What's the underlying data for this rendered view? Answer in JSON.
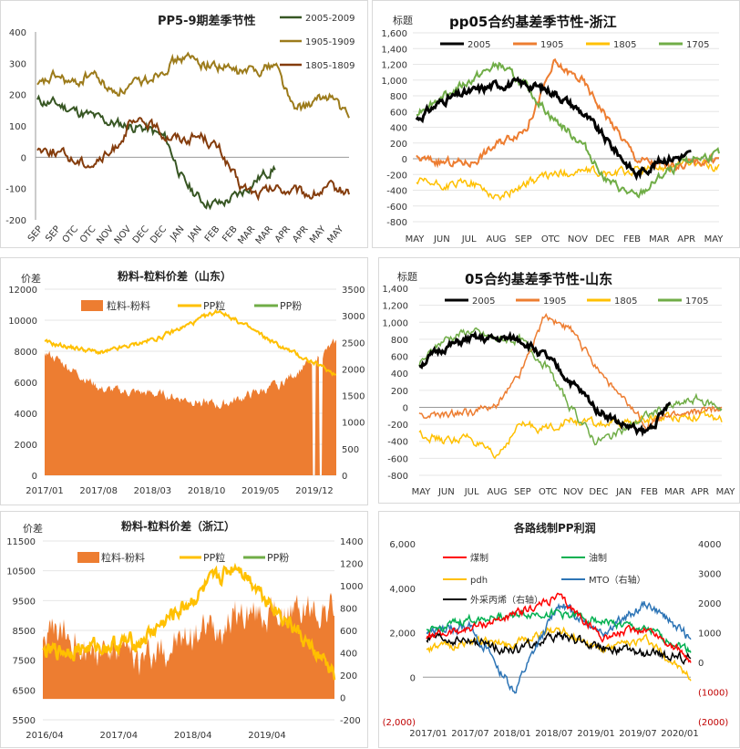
{
  "panels": [
    {
      "id": "p1",
      "title": "PP5-9期差季节性",
      "ytitle": "",
      "yticks": [
        "400",
        "300",
        "200",
        "100",
        "0",
        "-100",
        "-200"
      ],
      "xlabels": [
        "SEP",
        "SEP",
        "OTC",
        "OTC",
        "NOV",
        "NOV",
        "DEC",
        "DEC",
        "JAN",
        "JAN",
        "FEB",
        "FEB",
        "MAR",
        "MAR",
        "APR",
        "APR",
        "MAY",
        "MAY"
      ],
      "legend": [
        {
          "name": "2005-2009",
          "color": "#375623"
        },
        {
          "name": "1905-1909",
          "color": "#9c7b1b"
        },
        {
          "name": "1805-1809",
          "color": "#843c0c"
        }
      ]
    },
    {
      "id": "p2",
      "title": "pp05合约基差季节性-浙江",
      "ytitle": "标题",
      "yticks": [
        "1,600",
        "1,400",
        "1,200",
        "1,000",
        "800",
        "600",
        "400",
        "200",
        "0",
        "-200",
        "-400",
        "-600",
        "-800"
      ],
      "xlabels": [
        "MAY",
        "JUN",
        "JUL",
        "AUG",
        "SEP",
        "OTC",
        "NOV",
        "DEC",
        "FEB",
        "MAR",
        "APR",
        "MAY"
      ],
      "legend": [
        {
          "name": "2005",
          "color": "#000000"
        },
        {
          "name": "1905",
          "color": "#ed7d31"
        },
        {
          "name": "1805",
          "color": "#ffc000"
        },
        {
          "name": "1705",
          "color": "#70ad47"
        }
      ]
    },
    {
      "id": "p3",
      "title": "粉料-粒料价差（山东）",
      "ytitle": "价差",
      "yticks": [
        "12000",
        "10000",
        "8000",
        "6000",
        "4000",
        "2000",
        "0"
      ],
      "y2ticks": [
        "3500",
        "3000",
        "2500",
        "2000",
        "1500",
        "1000",
        "500",
        "0"
      ],
      "xlabels": [
        "2017/01",
        "2017/08",
        "2018/03",
        "2018/10",
        "2019/05",
        "2019/12"
      ],
      "legend": [
        {
          "name": "粒料-粉料",
          "color": "#ed7d31"
        },
        {
          "name": "PP粒",
          "color": "#ffc000"
        },
        {
          "name": "PP粉",
          "color": "#70ad47"
        }
      ]
    },
    {
      "id": "p4",
      "title": "05合约基差季节性-山东",
      "ytitle": "标题",
      "yticks": [
        "1,400",
        "1,200",
        "1,000",
        "800",
        "600",
        "400",
        "200",
        "0",
        "-200",
        "-400",
        "-600",
        "-800"
      ],
      "xlabels": [
        "MAY",
        "JUN",
        "JUL",
        "AUG",
        "SEP",
        "OTC",
        "NOV",
        "DEC",
        "JAN",
        "FEB",
        "MAR",
        "APR",
        "MAY"
      ],
      "legend": [
        {
          "name": "2005",
          "color": "#000000"
        },
        {
          "name": "1905",
          "color": "#ed7d31"
        },
        {
          "name": "1805",
          "color": "#ffc000"
        },
        {
          "name": "1705",
          "color": "#70ad47"
        }
      ]
    },
    {
      "id": "p5",
      "title": "粉料-粒料价差（浙江）",
      "ytitle": "价差",
      "yticks": [
        "11500",
        "10500",
        "9500",
        "8500",
        "7500",
        "6500",
        "5500"
      ],
      "y2ticks": [
        "1400",
        "1200",
        "1000",
        "800",
        "600",
        "400",
        "200",
        "0",
        "-200"
      ],
      "xlabels": [
        "2016/04",
        "2017/04",
        "2018/04",
        "2019/04"
      ],
      "legend": [
        {
          "name": "粒料-粉料",
          "color": "#ed7d31"
        },
        {
          "name": "PP粒",
          "color": "#ffc000"
        },
        {
          "name": "PP粉",
          "color": "#70ad47"
        }
      ]
    },
    {
      "id": "p6",
      "title": "各路线制PP利润",
      "ytitle": "",
      "yticks": [
        "6,000",
        "4,000",
        "2,000",
        "0",
        "(2,000)"
      ],
      "y2ticks": [
        "4000",
        "3000",
        "2000",
        "1000",
        "0",
        "(1000)",
        "(2000)"
      ],
      "xlabels": [
        "2017/01",
        "2017/07",
        "2018/01",
        "2018/07",
        "2019/01",
        "2019/07",
        "2020/01"
      ],
      "legend": [
        {
          "name": "煤制",
          "color": "#ff0000"
        },
        {
          "name": "油制",
          "color": "#00b050"
        },
        {
          "name": "pdh",
          "color": "#ffc000"
        },
        {
          "name": "MTO（右轴）",
          "color": "#2e75b6"
        },
        {
          "name": "外采丙烯（右轴）",
          "color": "#000000"
        }
      ]
    }
  ],
  "chart_data": [
    {
      "type": "line",
      "title": "PP5-9期差季节性",
      "x": [
        "SEP",
        "SEP",
        "OTC",
        "OTC",
        "NOV",
        "NOV",
        "DEC",
        "DEC",
        "JAN",
        "JAN",
        "FEB",
        "FEB",
        "MAR",
        "MAR",
        "APR",
        "APR",
        "MAY",
        "MAY"
      ],
      "ylim": [
        -200,
        400
      ],
      "series": [
        {
          "name": "2005-2009",
          "values": [
            180,
            170,
            150,
            130,
            110,
            100,
            90,
            60,
            -80,
            -140,
            -150,
            -120,
            -70,
            -30,
            null,
            null,
            null,
            null
          ]
        },
        {
          "name": "1905-1909",
          "values": [
            220,
            260,
            230,
            270,
            210,
            220,
            250,
            290,
            320,
            300,
            290,
            270,
            280,
            300,
            150,
            170,
            200,
            120
          ]
        },
        {
          "name": "1805-1809",
          "values": [
            30,
            20,
            -10,
            -20,
            10,
            100,
            110,
            70,
            60,
            70,
            20,
            -90,
            -120,
            -100,
            -110,
            -120,
            -100,
            -110
          ]
        }
      ]
    },
    {
      "type": "line",
      "title": "pp05合约基差季节性-浙江",
      "x": [
        "MAY",
        "JUN",
        "JUL",
        "AUG",
        "SEP",
        "OTC",
        "NOV",
        "DEC",
        "FEB",
        "MAR",
        "APR",
        "MAY"
      ],
      "ylim": [
        -800,
        1600
      ],
      "series": [
        {
          "name": "2005",
          "values": [
            500,
            750,
            850,
            950,
            950,
            850,
            600,
            200,
            -200,
            0,
            50,
            null
          ]
        },
        {
          "name": "1905",
          "values": [
            0,
            -50,
            -50,
            200,
            400,
            1200,
            1000,
            500,
            0,
            -100,
            -50,
            0
          ]
        },
        {
          "name": "1805",
          "values": [
            -300,
            -350,
            -300,
            -500,
            -300,
            -200,
            -150,
            -200,
            -150,
            -100,
            -50,
            -100
          ]
        },
        {
          "name": "1705",
          "values": [
            600,
            800,
            1000,
            1200,
            900,
            500,
            200,
            -300,
            -500,
            -200,
            0,
            50
          ]
        }
      ]
    },
    {
      "type": "area",
      "title": "粉料-粒料价差（山东）",
      "x": [
        "2017/01",
        "2017/08",
        "2018/03",
        "2018/10",
        "2019/05",
        "2019/12"
      ],
      "ylim": [
        0,
        12000
      ],
      "y2lim": [
        0,
        3500
      ],
      "series": [
        {
          "name": "粒料-粉料",
          "axis": "left",
          "values": [
            8000,
            5500,
            5200,
            4500,
            5800,
            8500
          ]
        },
        {
          "name": "PP粒",
          "axis": "right",
          "values": [
            2500,
            2300,
            2600,
            3100,
            2450,
            1900
          ]
        },
        {
          "name": "PP粉",
          "axis": "right",
          "values": [
            null,
            null,
            null,
            null,
            null,
            null
          ]
        }
      ]
    },
    {
      "type": "line",
      "title": "05合约基差季节性-山东",
      "x": [
        "MAY",
        "JUN",
        "JUL",
        "AUG",
        "SEP",
        "OTC",
        "NOV",
        "DEC",
        "JAN",
        "FEB",
        "MAR",
        "APR",
        "MAY"
      ],
      "ylim": [
        -800,
        1400
      ],
      "series": [
        {
          "name": "2005",
          "values": [
            500,
            700,
            800,
            800,
            800,
            600,
            300,
            0,
            -200,
            -300,
            50,
            null,
            null
          ]
        },
        {
          "name": "1905",
          "values": [
            -100,
            -100,
            -50,
            0,
            400,
            1100,
            900,
            500,
            100,
            -200,
            -100,
            -50,
            0
          ]
        },
        {
          "name": "1805",
          "values": [
            -300,
            -400,
            -350,
            -600,
            -200,
            -250,
            -150,
            -200,
            -200,
            -150,
            -100,
            -100,
            -150
          ]
        },
        {
          "name": "1705",
          "values": [
            500,
            800,
            900,
            800,
            800,
            500,
            0,
            -400,
            -300,
            -100,
            0,
            100,
            0
          ]
        }
      ]
    },
    {
      "type": "area",
      "title": "粉料-粒料价差（浙江）",
      "x": [
        "2016/04",
        "2017/04",
        "2018/04",
        "2019/04"
      ],
      "ylim": [
        5500,
        11500
      ],
      "y2lim": [
        -200,
        1400
      ],
      "series": [
        {
          "name": "粒料-粉料",
          "axis": "left",
          "values": [
            8500,
            7500,
            9000,
            9200
          ]
        },
        {
          "name": "PP粒",
          "axis": "right",
          "values": [
            400,
            500,
            1200,
            200
          ]
        },
        {
          "name": "PP粉",
          "axis": "right",
          "values": [
            null,
            null,
            null,
            null
          ]
        }
      ]
    },
    {
      "type": "line",
      "title": "各路线制PP利润",
      "x": [
        "2017/01",
        "2017/07",
        "2018/01",
        "2018/07",
        "2019/01",
        "2019/07",
        "2020/01"
      ],
      "ylim": [
        -2000,
        6000
      ],
      "y2lim": [
        -2000,
        4000
      ],
      "series": [
        {
          "name": "煤制",
          "axis": "left",
          "values": [
            1800,
            2200,
            2800,
            3600,
            1800,
            2200,
            800
          ]
        },
        {
          "name": "油制",
          "axis": "left",
          "values": [
            2000,
            2600,
            2800,
            2900,
            2500,
            2100,
            1200
          ]
        },
        {
          "name": "pdh",
          "axis": "left",
          "values": [
            1200,
            1600,
            1500,
            2200,
            1200,
            1700,
            -100
          ]
        },
        {
          "name": "MTO（右轴）",
          "axis": "right",
          "values": [
            1000,
            1200,
            -1000,
            2000,
            1000,
            2000,
            800
          ]
        },
        {
          "name": "外采丙烯（右轴）",
          "axis": "right",
          "values": [
            800,
            700,
            400,
            900,
            500,
            300,
            100
          ]
        }
      ]
    }
  ]
}
